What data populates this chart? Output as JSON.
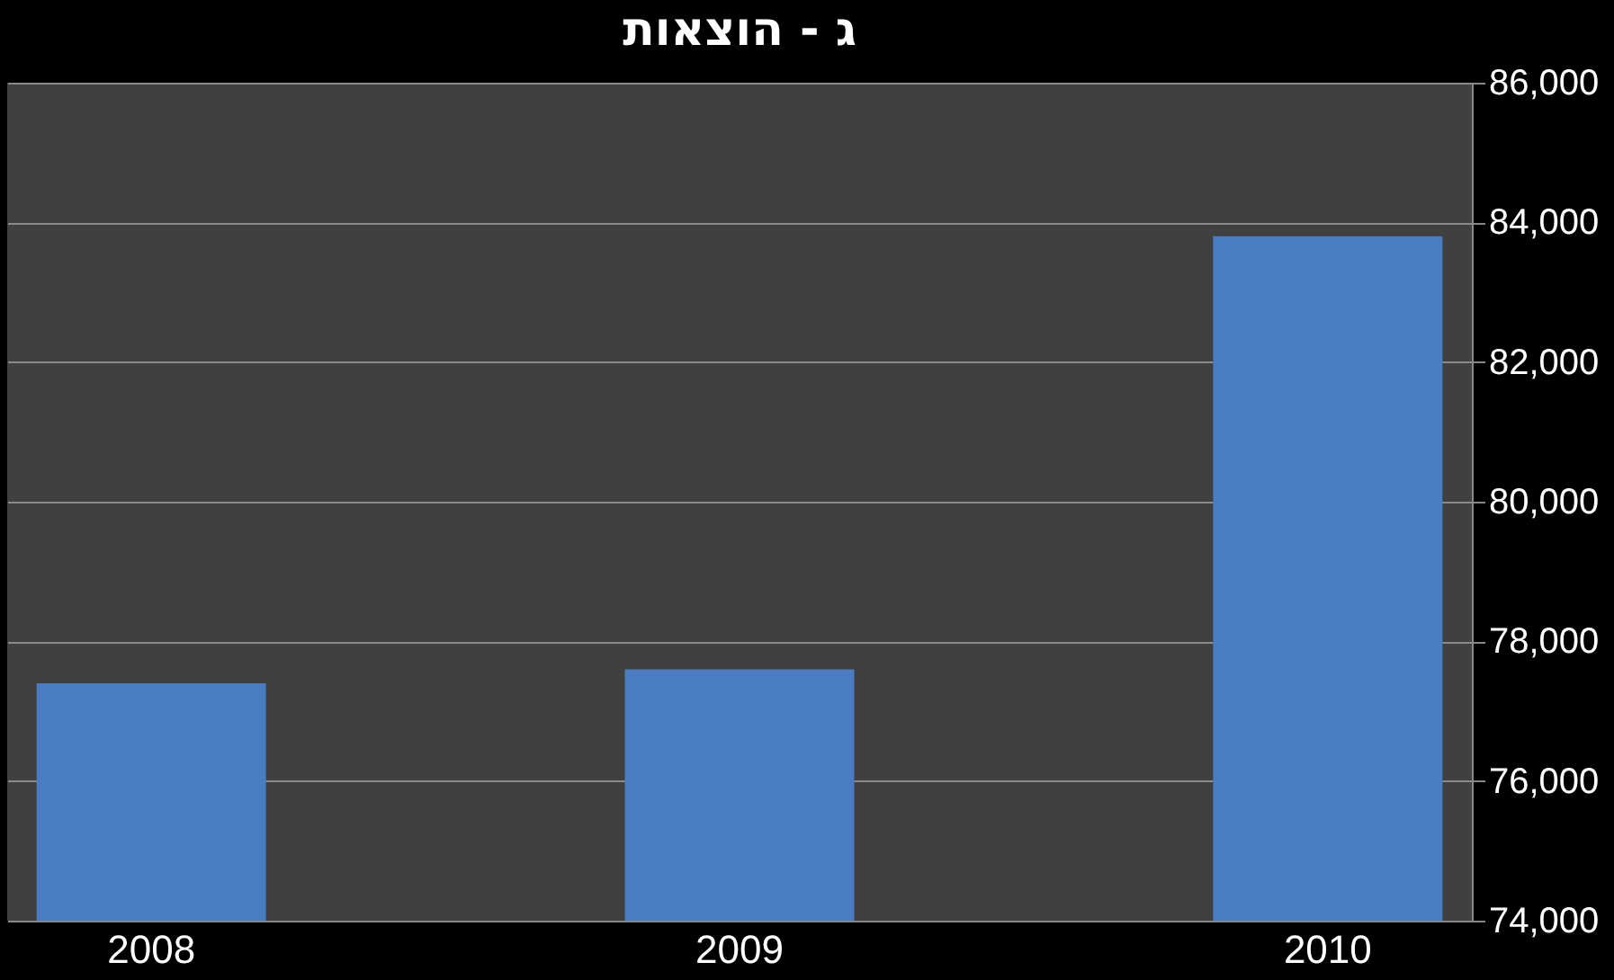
{
  "chart_data": {
    "type": "bar",
    "title": "ג - הוצאות",
    "categories": [
      "2008",
      "2009",
      "2010"
    ],
    "values": [
      77400,
      77600,
      83800
    ],
    "color": "#4a7cc1",
    "ylim": [
      74000,
      86000
    ],
    "yticks": [
      {
        "value": 74000,
        "label": "74,000"
      },
      {
        "value": 76000,
        "label": "76,000"
      },
      {
        "value": 78000,
        "label": "78,000"
      },
      {
        "value": 80000,
        "label": "80,000"
      },
      {
        "value": 82000,
        "label": "82,000"
      },
      {
        "value": 84000,
        "label": "84,000"
      },
      {
        "value": 86000,
        "label": "86,000"
      }
    ],
    "grid": "y"
  }
}
